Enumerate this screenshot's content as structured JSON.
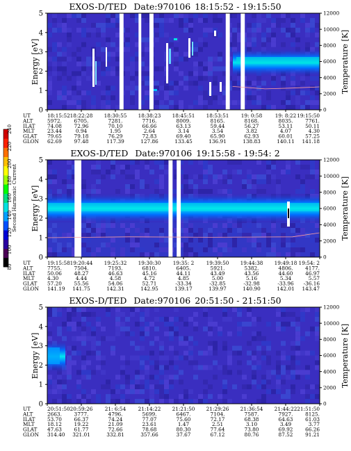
{
  "chart_data": [
    {
      "type": "heatmap",
      "title_instrument": "EXOS-D/TED",
      "title_date": "Date:970106",
      "title_time": "18:15:52 - 19:15:50",
      "ylabel": "Energy [eV]",
      "ylabel_right": "Temperature [K]",
      "ylim": [
        0,
        5
      ],
      "yticks": [
        "0",
        "1",
        "2",
        "3",
        "4",
        "5"
      ],
      "ylim_right": [
        0,
        12000
      ],
      "yticks_right": [
        "0",
        "2000",
        "4000",
        "6000",
        "8000",
        "10000",
        "12000"
      ],
      "row_labels": [
        "UT",
        "ALT",
        "ILAT",
        "MLT",
        "GLAT",
        "GLON"
      ],
      "columns": [
        [
          "18:15:52",
          "5972.",
          "74.08",
          "23.44",
          "79.65",
          "62.69"
        ],
        [
          "18:22:28",
          "6705.",
          "72.96",
          "0.94",
          "79.18",
          "97.48"
        ],
        [
          "18:30:55",
          "7281.",
          "70.10",
          "1.95",
          "76.29",
          "117.39"
        ],
        [
          "18:38:23",
          "7716.",
          "66.66",
          "2.64",
          "72.83",
          "127.86"
        ],
        [
          "18:45:51",
          "8009.",
          "63.13",
          "3.14",
          "69.40",
          "133.45"
        ],
        [
          "18:53:51",
          "8165.",
          "59.44",
          "3.54",
          "65.90",
          "136.91"
        ],
        [
          "19: 0:58",
          "8168.",
          "56.27",
          "3.82",
          "62.93",
          "138.83"
        ],
        [
          "19: 8:22",
          "8035.",
          "53.11",
          "4.07",
          "60.01",
          "140.11"
        ],
        [
          "19:15:50",
          "7761.",
          "50.11",
          "4.30",
          "57.25",
          "141.18"
        ]
      ],
      "band_energy_ev": 2.4,
      "band_start_fraction": 0.68,
      "data_gaps_fraction": [
        [
          0.265,
          0.28
        ],
        [
          0.335,
          0.345
        ],
        [
          0.375,
          0.39
        ],
        [
          0.655,
          0.67
        ],
        [
          0.71,
          0.725
        ]
      ],
      "temperature_trace_k": [
        [
          0.68,
          2900
        ],
        [
          0.8,
          2600
        ],
        [
          0.9,
          2700
        ],
        [
          1.0,
          2850
        ]
      ]
    },
    {
      "type": "heatmap",
      "title_instrument": "EXOS-D/TED",
      "title_date": "Date:970106",
      "title_time": "19:15:58 - 19:54: 2",
      "ylabel": "Energy [eV]",
      "ylabel_right": "Temperature [K]",
      "ylim": [
        0,
        5
      ],
      "yticks": [
        "0",
        "1",
        "2",
        "3",
        "4",
        "5"
      ],
      "ylim_right": [
        0,
        12000
      ],
      "yticks_right": [
        "0",
        "2000",
        "4000",
        "6000",
        "8000",
        "10000",
        "12000"
      ],
      "row_labels": [
        "UT",
        "ALT",
        "ILAT",
        "MLT",
        "GLAT",
        "GLON"
      ],
      "columns": [
        [
          "19:15:58",
          "7755.",
          "50.06",
          "4.30",
          "57.20",
          "141.19"
        ],
        [
          "19:20:44",
          "7504.",
          "48.27",
          "4.44",
          "55.56",
          "141.75"
        ],
        [
          "19:25:32",
          "7193.",
          "46.63",
          "4.58",
          "54.06",
          "142.31"
        ],
        [
          "19:30:30",
          "6810.",
          "45.16",
          "4.72",
          "52.71",
          "142.95"
        ],
        [
          "19:35: 2",
          "6405.",
          "44.11",
          "4.85",
          "-33.34",
          "139.17"
        ],
        [
          "19:39:50",
          "5921.",
          "43.49",
          "5.00",
          "-32.85",
          "139.97"
        ],
        [
          "19:44:38",
          "5382.",
          "43.56",
          "5.16",
          "-32.98",
          "140.90"
        ],
        [
          "19:49:18",
          "4806.",
          "44.60",
          "5.34",
          "-33.96",
          "142.01"
        ],
        [
          "19:54: 2",
          "4177.",
          "46.97",
          "5.57",
          "-36.16",
          "143.47"
        ]
      ],
      "band_energy_ev": 2.3,
      "data_gaps_fraction": [
        [
          0.1,
          0.125
        ],
        [
          0.445,
          0.46
        ],
        [
          0.475,
          0.49
        ]
      ],
      "temperature_trace_k": [
        [
          0.0,
          2400
        ],
        [
          0.3,
          2500
        ],
        [
          0.6,
          2450
        ],
        [
          0.9,
          2500
        ],
        [
          1.0,
          3000
        ]
      ]
    },
    {
      "type": "heatmap",
      "title_instrument": "EXOS-D/TED",
      "title_date": "Date:970106",
      "title_time": "20:51:50 - 21:51:50",
      "ylabel": "Energy [eV]",
      "ylabel_right": "Temperature [K]",
      "ylim": [
        0,
        5
      ],
      "yticks": [
        "0",
        "1",
        "2",
        "3",
        "4",
        "5"
      ],
      "ylim_right": [
        0,
        12000
      ],
      "yticks_right": [
        "0",
        "2000",
        "4000",
        "6000",
        "8000",
        "10000",
        "12000"
      ],
      "row_labels": [
        "UT",
        "ALT",
        "ILAT",
        "MLT",
        "GLAT",
        "GLON"
      ],
      "columns": [
        [
          "20:51:50",
          "2663.",
          "53.70",
          "18.12",
          "47.63",
          "314.40"
        ],
        [
          "20:59:26",
          "3777.",
          "66.37",
          "19.22",
          "61.77",
          "321.01"
        ],
        [
          "21: 6:54",
          "4796.",
          "74.24",
          "21.09",
          "72.66",
          "332.81"
        ],
        [
          "21:14:22",
          "5699.",
          "77.07",
          "23.61",
          "78.68",
          "357.66"
        ],
        [
          "21:21:50",
          "6467.",
          "75.60",
          "1.47",
          "80.30",
          "37.67"
        ],
        [
          "21:29:26",
          "7104.",
          "72.17",
          "2.51",
          "77.64",
          "67.12"
        ],
        [
          "21:36:54",
          "7587.",
          "68.38",
          "3.10",
          "73.80",
          "80.76"
        ],
        [
          "21:44:22",
          "7927.",
          "64.63",
          "3.49",
          "69.92",
          "87.52"
        ],
        [
          "21:51:50",
          "8125.",
          "61.03",
          "3.77",
          "66.26",
          "91.21"
        ]
      ],
      "band_energy_ev": 2.5,
      "band_end_fraction": 0.06
    }
  ],
  "colorbar": {
    "label": "Second Harmonic Current",
    "ticks": [
      "80",
      "100",
      "120",
      "140",
      "160",
      "180",
      "200",
      "220",
      "240"
    ],
    "colors": [
      "#000000",
      "#4b0055",
      "#2a00a0",
      "#0000d8",
      "#0050ff",
      "#00a0ff",
      "#00e0e0",
      "#00e080",
      "#00ff00",
      "#a0ff00",
      "#ffff00",
      "#ffc000",
      "#ff7000",
      "#ff2000",
      "#d00000"
    ]
  }
}
